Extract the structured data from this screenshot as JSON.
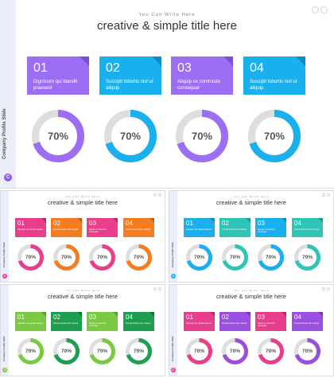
{
  "slides": [
    {
      "subtitle": "You Can Write Here",
      "title": "creative & simple title here",
      "side_label": "Company Profile Slide",
      "logo": "C",
      "logo_color": "#8b5cf6",
      "cards": [
        {
          "num": "01",
          "desc": "Dignissim qui blandit praesent",
          "color": "#9b6ef3",
          "fold": "#7a4fd6"
        },
        {
          "num": "02",
          "desc": "Suscipit lobortis nisl ut aliquip",
          "color": "#1ab0ee",
          "fold": "#0d8cc4"
        },
        {
          "num": "03",
          "desc": "Aliquip ex commodo consequat",
          "color": "#9b6ef3",
          "fold": "#7a4fd6"
        },
        {
          "num": "04",
          "desc": "Suscipit lobortis nisl ut aliquip",
          "color": "#1ab0ee",
          "fold": "#0d8cc4"
        }
      ],
      "rings": [
        {
          "label": "70%",
          "fraction": 0.7,
          "color": "#9b6ef3"
        },
        {
          "label": "70%",
          "fraction": 0.7,
          "color": "#1ab0ee"
        },
        {
          "label": "70%",
          "fraction": 0.7,
          "color": "#9b6ef3"
        },
        {
          "label": "70%",
          "fraction": 0.7,
          "color": "#1ab0ee"
        }
      ]
    },
    {
      "subtitle": "You Can Write Here",
      "title": "creative & simple title here",
      "side_label": "Company Profile Slide",
      "logo": "C",
      "logo_color": "#e83e8c",
      "cards": [
        {
          "num": "01",
          "desc": "Dignissim qui blandit praesent",
          "color": "#e83e8c",
          "fold": "#b52a6b"
        },
        {
          "num": "02",
          "desc": "Suscipit lobortis nisl ut aliquip",
          "color": "#f57c20",
          "fold": "#c75f10"
        },
        {
          "num": "03",
          "desc": "Aliquip ex commodo consequat",
          "color": "#e83e8c",
          "fold": "#b52a6b"
        },
        {
          "num": "04",
          "desc": "Suscipit lobortis nisl ut aliquip",
          "color": "#f57c20",
          "fold": "#c75f10"
        }
      ],
      "rings": [
        {
          "label": "70%",
          "fraction": 0.7,
          "color": "#e83e8c"
        },
        {
          "label": "70%",
          "fraction": 0.7,
          "color": "#f57c20"
        },
        {
          "label": "70%",
          "fraction": 0.7,
          "color": "#e83e8c"
        },
        {
          "label": "70%",
          "fraction": 0.7,
          "color": "#f57c20"
        }
      ]
    },
    {
      "subtitle": "You Can Write Here",
      "title": "creative & simple title here",
      "side_label": "Company Profile Slide",
      "logo": "C",
      "logo_color": "#1ab0ee",
      "cards": [
        {
          "num": "01",
          "desc": "Dignissim qui blandit praesent",
          "color": "#1ab0ee",
          "fold": "#0d8cc4"
        },
        {
          "num": "02",
          "desc": "Suscipit lobortis nisl ut aliquip",
          "color": "#2ec4b6",
          "fold": "#1f9a8e"
        },
        {
          "num": "03",
          "desc": "Aliquip ex commodo consequat",
          "color": "#1ab0ee",
          "fold": "#0d8cc4"
        },
        {
          "num": "04",
          "desc": "Suscipit lobortis nisl ut aliquip",
          "color": "#2ec4b6",
          "fold": "#1f9a8e"
        }
      ],
      "rings": [
        {
          "label": "70%",
          "fraction": 0.7,
          "color": "#1ab0ee"
        },
        {
          "label": "70%",
          "fraction": 0.7,
          "color": "#2ec4b6"
        },
        {
          "label": "70%",
          "fraction": 0.7,
          "color": "#1ab0ee"
        },
        {
          "label": "70%",
          "fraction": 0.7,
          "color": "#2ec4b6"
        }
      ]
    },
    {
      "subtitle": "You Can Write Here",
      "title": "creative & simple title here",
      "side_label": "Company Profile Slide",
      "logo": "C",
      "logo_color": "#7ac943",
      "cards": [
        {
          "num": "01",
          "desc": "Dignissim qui blandit praesent",
          "color": "#7ac943",
          "fold": "#5a9e2c"
        },
        {
          "num": "02",
          "desc": "Suscipit lobortis nisl ut aliquip",
          "color": "#1e9e50",
          "fold": "#13753a"
        },
        {
          "num": "03",
          "desc": "Aliquip ex commodo consequat",
          "color": "#7ac943",
          "fold": "#5a9e2c"
        },
        {
          "num": "04",
          "desc": "Suscipit lobortis nisl ut aliquip",
          "color": "#1e9e50",
          "fold": "#13753a"
        }
      ],
      "rings": [
        {
          "label": "70%",
          "fraction": 0.7,
          "color": "#7ac943"
        },
        {
          "label": "70%",
          "fraction": 0.7,
          "color": "#1e9e50"
        },
        {
          "label": "70%",
          "fraction": 0.7,
          "color": "#7ac943"
        },
        {
          "label": "70%",
          "fraction": 0.7,
          "color": "#1e9e50"
        }
      ]
    },
    {
      "subtitle": "You Can Write Here",
      "title": "creative & simple title here",
      "side_label": "Company Profile Slide",
      "logo": "C",
      "logo_color": "#e83e8c",
      "cards": [
        {
          "num": "01",
          "desc": "Dignissim qui blandit praesent",
          "color": "#e83e8c",
          "fold": "#b52a6b"
        },
        {
          "num": "02",
          "desc": "Suscipit lobortis nisl ut aliquip",
          "color": "#9b4fe0",
          "fold": "#7634b6"
        },
        {
          "num": "03",
          "desc": "Aliquip ex commodo consequat",
          "color": "#e83e8c",
          "fold": "#b52a6b"
        },
        {
          "num": "04",
          "desc": "Suscipit lobortis nisl ut aliquip",
          "color": "#9b4fe0",
          "fold": "#7634b6"
        }
      ],
      "rings": [
        {
          "label": "70%",
          "fraction": 0.7,
          "color": "#e83e8c"
        },
        {
          "label": "70%",
          "fraction": 0.7,
          "color": "#9b4fe0"
        },
        {
          "label": "70%",
          "fraction": 0.7,
          "color": "#e83e8c"
        },
        {
          "label": "70%",
          "fraction": 0.7,
          "color": "#9b4fe0"
        }
      ]
    }
  ]
}
